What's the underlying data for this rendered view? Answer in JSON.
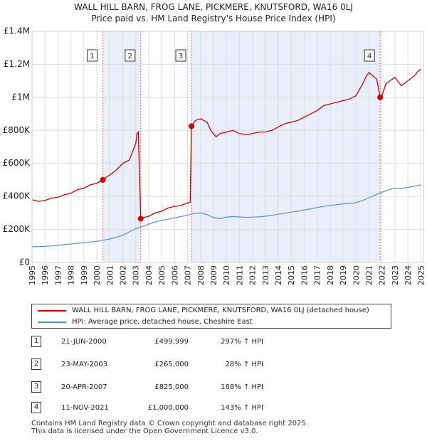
{
  "chart_data": {
    "type": "line",
    "title": "WALL HILL BARN, FROG LANE, PICKMERE, KNUTSFORD, WA16 0LJ",
    "subtitle": "Price paid vs. HM Land Registry's House Price Index (HPI)",
    "xlabel": "",
    "ylabel": "",
    "xlim": [
      1995,
      2025.2
    ],
    "ylim": [
      0,
      1400000
    ],
    "y_ticks": [
      0,
      200000,
      400000,
      600000,
      800000,
      1000000,
      1200000,
      1400000
    ],
    "y_tick_labels": [
      "£0",
      "£200K",
      "£400K",
      "£600K",
      "£800K",
      "£1M",
      "£1.2M",
      "£1.4M"
    ],
    "x_ticks": [
      1995,
      1996,
      1997,
      1998,
      1999,
      2000,
      2001,
      2002,
      2003,
      2004,
      2005,
      2006,
      2007,
      2008,
      2009,
      2010,
      2011,
      2012,
      2013,
      2014,
      2015,
      2016,
      2017,
      2018,
      2019,
      2020,
      2021,
      2022,
      2023,
      2024,
      2025
    ],
    "x_tick_labels": [
      "1995",
      "1996",
      "1997",
      "1998",
      "1999",
      "2000",
      "2001",
      "2002",
      "2003",
      "2004",
      "2005",
      "2006",
      "2007",
      "2008",
      "2009",
      "2010",
      "2011",
      "2012",
      "2013",
      "2014",
      "2015",
      "2016",
      "2017",
      "2018",
      "2019",
      "2020",
      "2021",
      "2022",
      "2023",
      "2024",
      "2025"
    ],
    "grid": true,
    "series": [
      {
        "name": "WALL HILL BARN, FROG LANE, PICKMERE, KNUTSFORD, WA16 0LJ (detached house)",
        "color": "#cc0000",
        "x": [
          1995.0,
          1995.5,
          1996.0,
          1996.5,
          1997.0,
          1997.5,
          1998.0,
          1998.5,
          1999.0,
          1999.5,
          2000.0,
          2000.47,
          2000.5,
          2001.0,
          2001.5,
          2002.0,
          2002.5,
          2003.0,
          2003.1,
          2003.2,
          2003.39,
          2003.5,
          2004.0,
          2004.5,
          2005.0,
          2005.5,
          2006.0,
          2006.5,
          2007.0,
          2007.2,
          2007.3,
          2007.6,
          2008.0,
          2008.5,
          2008.8,
          2009.2,
          2009.5,
          2010.0,
          2010.5,
          2011.0,
          2011.5,
          2012.0,
          2012.5,
          2013.0,
          2013.5,
          2014.0,
          2014.5,
          2015.0,
          2015.5,
          2016.0,
          2016.5,
          2017.0,
          2017.5,
          2018.0,
          2018.5,
          2019.0,
          2019.5,
          2020.0,
          2020.5,
          2020.8,
          2021.0,
          2021.3,
          2021.6,
          2021.86,
          2022.0,
          2022.3,
          2022.6,
          2023.0,
          2023.5,
          2024.0,
          2024.5,
          2024.8,
          2025.0
        ],
        "values": [
          380000,
          370000,
          375000,
          390000,
          395000,
          410000,
          420000,
          440000,
          450000,
          470000,
          480000,
          499999,
          505000,
          530000,
          560000,
          600000,
          620000,
          720000,
          780000,
          790000,
          265000,
          270000,
          280000,
          300000,
          310000,
          330000,
          340000,
          345000,
          360000,
          365000,
          825000,
          860000,
          870000,
          850000,
          800000,
          760000,
          780000,
          790000,
          800000,
          780000,
          775000,
          780000,
          790000,
          790000,
          800000,
          820000,
          840000,
          850000,
          860000,
          880000,
          900000,
          920000,
          950000,
          960000,
          970000,
          980000,
          990000,
          1010000,
          1080000,
          1130000,
          1150000,
          1130000,
          1110000,
          1000000,
          1010000,
          1080000,
          1100000,
          1120000,
          1070000,
          1100000,
          1130000,
          1160000,
          1170000
        ]
      },
      {
        "name": "HPI: Average price, detached house, Cheshire East",
        "color": "#5b8ec7",
        "x": [
          1995.0,
          1995.5,
          1996.0,
          1996.5,
          1997.0,
          1997.5,
          1998.0,
          1998.5,
          1999.0,
          1999.5,
          2000.0,
          2000.5,
          2001.0,
          2001.5,
          2002.0,
          2002.5,
          2003.0,
          2003.5,
          2004.0,
          2004.5,
          2005.0,
          2005.5,
          2006.0,
          2006.5,
          2007.0,
          2007.5,
          2008.0,
          2008.5,
          2009.0,
          2009.5,
          2010.0,
          2010.5,
          2011.0,
          2011.5,
          2012.0,
          2012.5,
          2013.0,
          2013.5,
          2014.0,
          2014.5,
          2015.0,
          2015.5,
          2016.0,
          2016.5,
          2017.0,
          2017.5,
          2018.0,
          2018.5,
          2019.0,
          2019.5,
          2020.0,
          2020.5,
          2021.0,
          2021.5,
          2022.0,
          2022.5,
          2023.0,
          2023.5,
          2024.0,
          2024.5,
          2025.0
        ],
        "values": [
          95000,
          96000,
          98000,
          100000,
          104000,
          108000,
          112000,
          116000,
          120000,
          124000,
          128000,
          135000,
          142000,
          152000,
          165000,
          185000,
          205000,
          218000,
          232000,
          245000,
          255000,
          262000,
          270000,
          278000,
          287000,
          296000,
          300000,
          290000,
          272000,
          265000,
          275000,
          278000,
          276000,
          273000,
          275000,
          276000,
          280000,
          285000,
          292000,
          298000,
          305000,
          310000,
          318000,
          325000,
          333000,
          340000,
          346000,
          350000,
          355000,
          358000,
          362000,
          375000,
          392000,
          410000,
          425000,
          440000,
          450000,
          448000,
          455000,
          462000,
          470000
        ]
      }
    ],
    "markers": [
      {
        "label": "1",
        "x": 2000.47,
        "value": 499999
      },
      {
        "label": "2",
        "x": 2003.39,
        "value": 265000
      },
      {
        "label": "3",
        "x": 2007.3,
        "value": 825000
      },
      {
        "label": "4",
        "x": 2021.86,
        "value": 1000000
      }
    ],
    "shaded_ranges": [
      [
        2000.47,
        2003.39
      ],
      [
        2007.3,
        2021.86
      ]
    ]
  },
  "legend": {
    "property_label": "WALL HILL BARN, FROG LANE, PICKMERE, KNUTSFORD, WA16 0LJ (detached house)",
    "hpi_label": "HPI: Average price, detached house, Cheshire East"
  },
  "transactions": [
    {
      "num": "1",
      "date": "21-JUN-2000",
      "price": "£499,999",
      "pct": "297% ↑ HPI"
    },
    {
      "num": "2",
      "date": "23-MAY-2003",
      "price": "£265,000",
      "pct": "28% ↑ HPI"
    },
    {
      "num": "3",
      "date": "20-APR-2007",
      "price": "£825,000",
      "pct": "188% ↑ HPI"
    },
    {
      "num": "4",
      "date": "11-NOV-2021",
      "price": "£1,000,000",
      "pct": "143% ↑ HPI"
    }
  ],
  "footer": {
    "line1": "Contains HM Land Registry data © Crown copyright and database right 2025.",
    "line2": "This data is licensed under the Open Government Licence v3.0."
  }
}
